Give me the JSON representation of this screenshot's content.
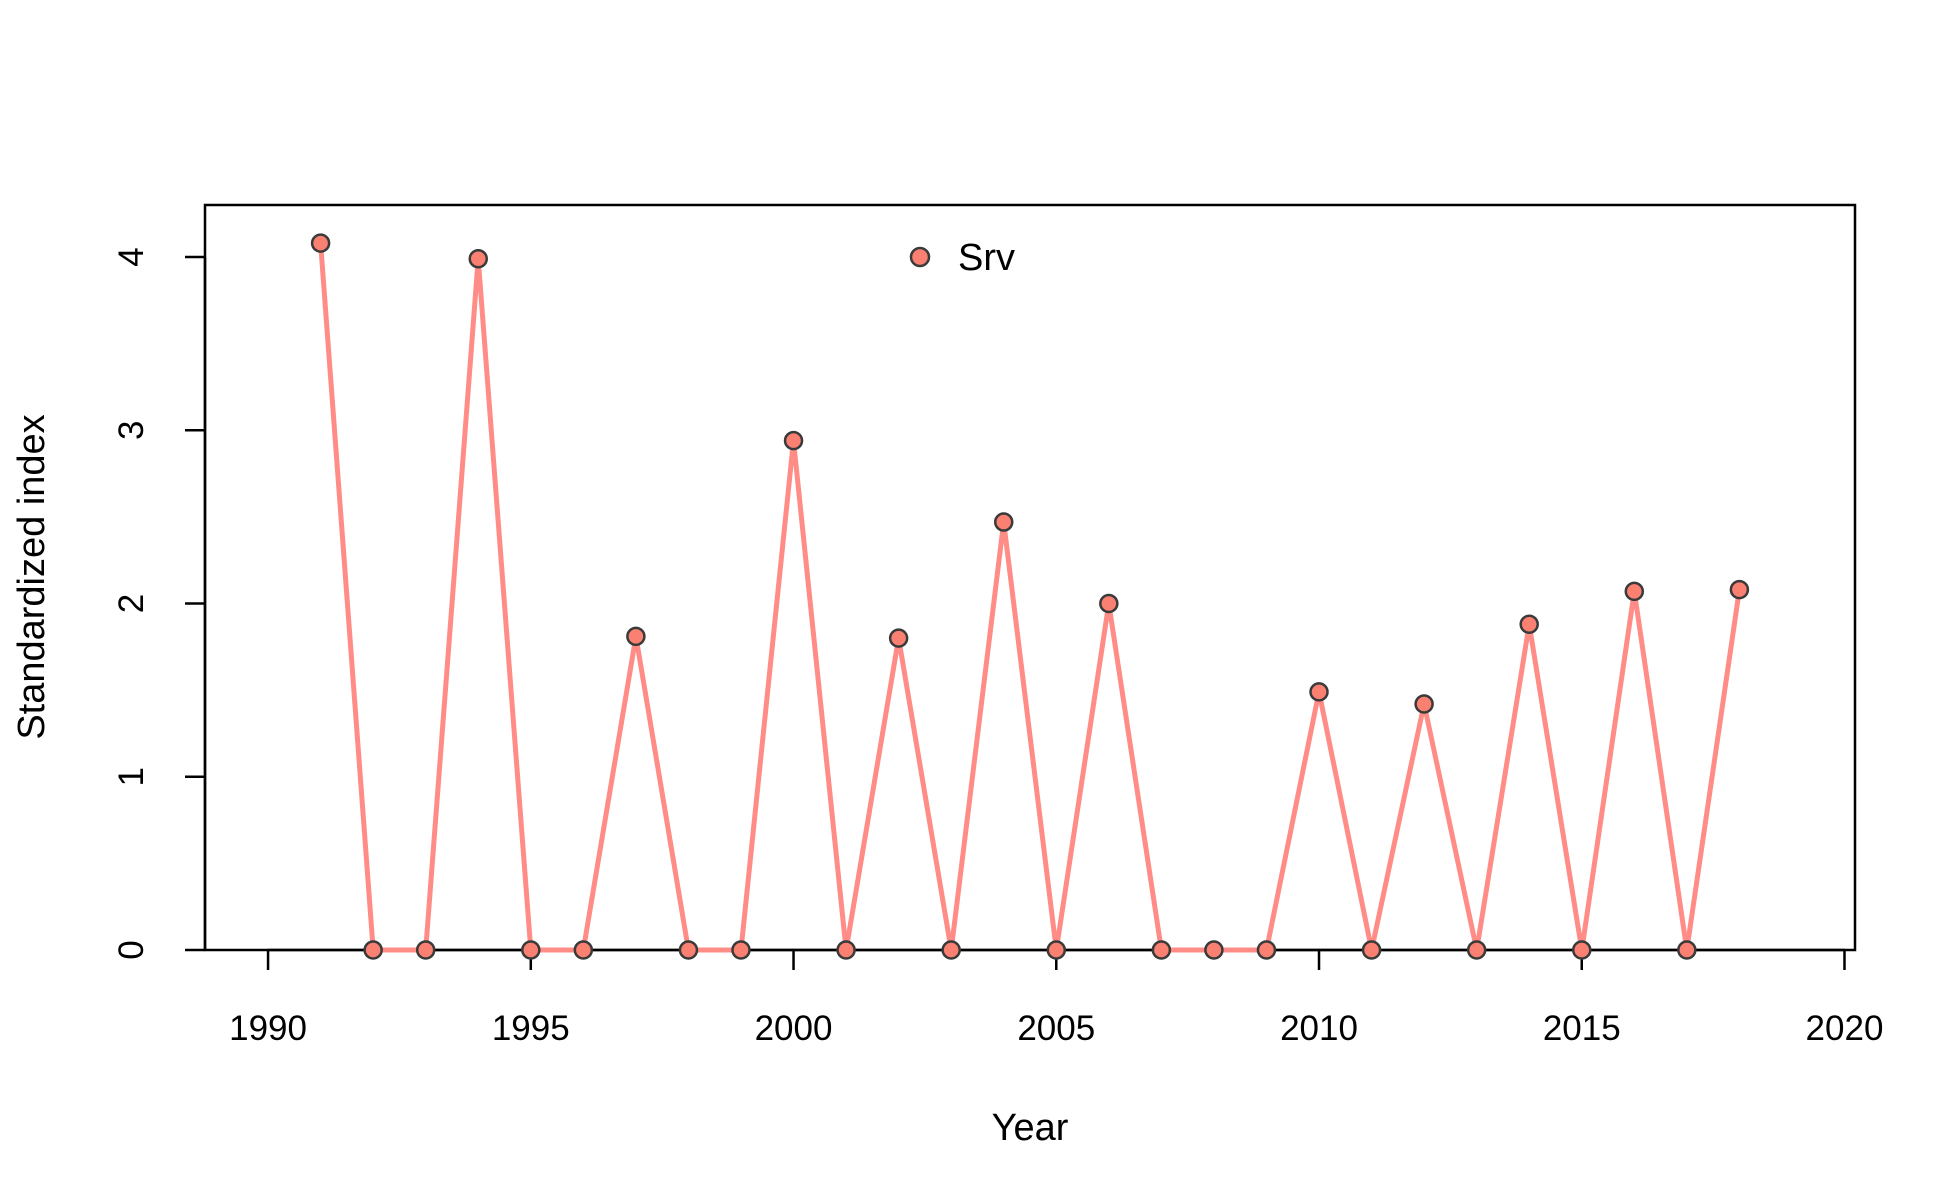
{
  "chart_data": {
    "type": "line",
    "title": "",
    "xlabel": "Year",
    "ylabel": "Standardized index",
    "xlim": [
      1988.8,
      2020.2
    ],
    "ylim": [
      0,
      4.3
    ],
    "x_ticks": [
      1990,
      1995,
      2000,
      2005,
      2010,
      2015,
      2020
    ],
    "y_ticks": [
      0,
      1,
      2,
      3,
      4
    ],
    "grid": false,
    "legend_position": "top-center",
    "series": [
      {
        "name": "Srv",
        "color": "#FA8072",
        "line_color": "#FF8C86",
        "marker": "circle",
        "x": [
          1991,
          1992,
          1993,
          1994,
          1995,
          1996,
          1997,
          1998,
          1999,
          2000,
          2001,
          2002,
          2003,
          2004,
          2005,
          2006,
          2007,
          2008,
          2009,
          2010,
          2011,
          2012,
          2013,
          2014,
          2015,
          2016,
          2017,
          2018
        ],
        "y": [
          4.08,
          0,
          0,
          3.99,
          0,
          0,
          1.81,
          0,
          0,
          2.94,
          0,
          1.8,
          0,
          2.47,
          0,
          2.0,
          0,
          0,
          0,
          1.49,
          0,
          1.42,
          0,
          1.88,
          0,
          2.07,
          0,
          2.08
        ]
      }
    ]
  }
}
